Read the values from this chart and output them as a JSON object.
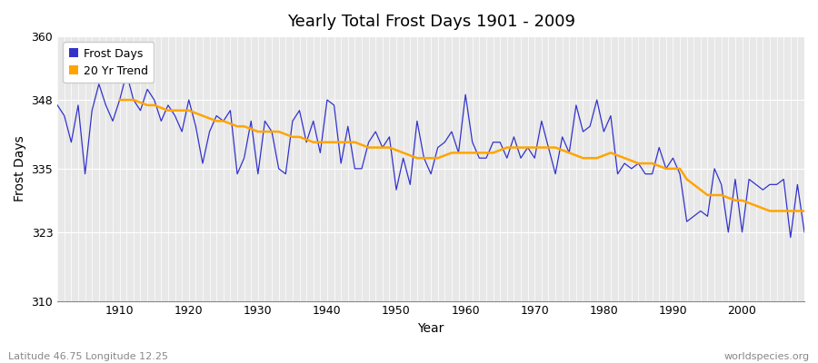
{
  "title": "Yearly Total Frost Days 1901 - 2009",
  "xlabel": "Year",
  "ylabel": "Frost Days",
  "subtitle": "Latitude 46.75 Longitude 12.25",
  "watermark": "worldspecies.org",
  "ylim": [
    310,
    360
  ],
  "yticks": [
    310,
    323,
    335,
    348,
    360
  ],
  "xlim": [
    1901,
    2009
  ],
  "xticks": [
    1910,
    1920,
    1930,
    1940,
    1950,
    1960,
    1970,
    1980,
    1990,
    2000
  ],
  "line_color": "#3333cc",
  "trend_color": "#FFA500",
  "bg_color": "#ffffff",
  "plot_bg_color": "#e8e8e8",
  "subtitle_color": "#888888",
  "watermark_color": "#888888",
  "legend_frost": "Frost Days",
  "legend_trend": "20 Yr Trend",
  "years": [
    1901,
    1902,
    1903,
    1904,
    1905,
    1906,
    1907,
    1908,
    1909,
    1910,
    1911,
    1912,
    1913,
    1914,
    1915,
    1916,
    1917,
    1918,
    1919,
    1920,
    1921,
    1922,
    1923,
    1924,
    1925,
    1926,
    1927,
    1928,
    1929,
    1930,
    1931,
    1932,
    1933,
    1934,
    1935,
    1936,
    1937,
    1938,
    1939,
    1940,
    1941,
    1942,
    1943,
    1944,
    1945,
    1946,
    1947,
    1948,
    1949,
    1950,
    1951,
    1952,
    1953,
    1954,
    1955,
    1956,
    1957,
    1958,
    1959,
    1960,
    1961,
    1962,
    1963,
    1964,
    1965,
    1966,
    1967,
    1968,
    1969,
    1970,
    1971,
    1972,
    1973,
    1974,
    1975,
    1976,
    1977,
    1978,
    1979,
    1980,
    1981,
    1982,
    1983,
    1984,
    1985,
    1986,
    1987,
    1988,
    1989,
    1990,
    1991,
    1992,
    1993,
    1994,
    1995,
    1996,
    1997,
    1998,
    1999,
    2000,
    2001,
    2002,
    2003,
    2004,
    2005,
    2006,
    2007,
    2008,
    2009
  ],
  "frost_days": [
    347,
    345,
    340,
    347,
    334,
    346,
    351,
    347,
    344,
    348,
    353,
    348,
    346,
    350,
    348,
    344,
    347,
    345,
    342,
    348,
    343,
    336,
    342,
    345,
    344,
    346,
    334,
    337,
    344,
    334,
    344,
    342,
    335,
    334,
    344,
    346,
    340,
    344,
    338,
    348,
    347,
    336,
    343,
    335,
    335,
    340,
    342,
    339,
    341,
    331,
    337,
    332,
    344,
    337,
    334,
    339,
    340,
    342,
    338,
    349,
    340,
    337,
    337,
    340,
    340,
    337,
    341,
    337,
    339,
    337,
    344,
    339,
    334,
    341,
    338,
    347,
    342,
    343,
    348,
    342,
    345,
    334,
    336,
    335,
    336,
    334,
    334,
    339,
    335,
    337,
    334,
    325,
    326,
    327,
    326,
    335,
    332,
    323,
    333,
    323,
    333,
    332,
    331,
    332,
    332,
    333,
    322,
    332,
    323
  ],
  "trend_start_year": 1910,
  "trend_values": [
    348.0,
    348.0,
    348.0,
    347.5,
    347.0,
    347.0,
    346.5,
    346.0,
    346.0,
    346.0,
    346.0,
    345.5,
    345.0,
    344.5,
    344.0,
    344.0,
    343.5,
    343.0,
    343.0,
    342.5,
    342.0,
    342.0,
    342.0,
    342.0,
    341.5,
    341.0,
    341.0,
    340.5,
    340.0,
    340.0,
    340.0,
    340.0,
    340.0,
    340.0,
    340.0,
    339.5,
    339.0,
    339.0,
    339.0,
    339.0,
    338.5,
    338.0,
    337.5,
    337.0,
    337.0,
    337.0,
    337.0,
    337.5,
    338.0,
    338.0,
    338.0,
    338.0,
    338.0,
    338.0,
    338.0,
    338.5,
    339.0,
    339.0,
    339.0,
    339.0,
    339.0,
    339.0,
    339.0,
    339.0,
    338.5,
    338.0,
    337.5,
    337.0,
    337.0,
    337.0,
    337.5,
    338.0,
    337.5,
    337.0,
    336.5,
    336.0,
    336.0,
    336.0,
    335.5,
    335.0,
    335.0,
    335.0,
    333.0,
    332.0,
    331.0,
    330.0,
    330.0,
    330.0,
    329.5,
    329.0,
    329.0,
    328.5,
    328.0,
    327.5,
    327.0,
    327.0,
    327.0,
    327.0,
    327.0,
    327.0
  ]
}
